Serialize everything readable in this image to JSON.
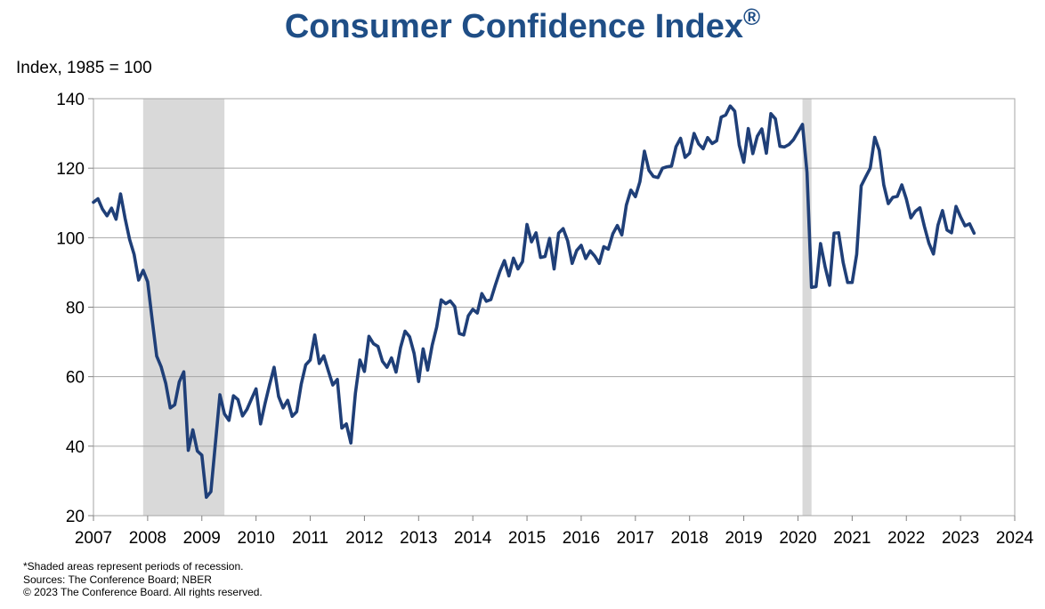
{
  "title": "Consumer Confidence Index",
  "title_mark": "®",
  "footnotes": [
    "*Shaded areas represent periods of recession.",
    "Sources: The Conference Board; NBER",
    "© 2023 The Conference Board. All rights reserved."
  ],
  "chart_data": {
    "type": "line",
    "title": "Consumer Confidence Index®",
    "ylabel": "Index, 1985 = 100",
    "xlabel": "",
    "xlim": [
      2007,
      2024
    ],
    "ylim": [
      20,
      140
    ],
    "x_ticks": [
      "2007",
      "2008",
      "2009",
      "2010",
      "2011",
      "2012",
      "2013",
      "2014",
      "2015",
      "2016",
      "2017",
      "2018",
      "2019",
      "2020",
      "2021",
      "2022",
      "2023",
      "2024"
    ],
    "y_ticks": [
      "20",
      "40",
      "60",
      "80",
      "100",
      "120",
      "140"
    ],
    "grid": "horizontal",
    "line_color": "#1f3f78",
    "recession_color": "#d9d9d9",
    "recessions": [
      {
        "start": "2007-12",
        "end": "2009-06"
      },
      {
        "start": "2020-02",
        "end": "2020-04"
      }
    ],
    "series": [
      {
        "points": [
          [
            "2007-01",
            110.2
          ],
          [
            "2007-02",
            111.2
          ],
          [
            "2007-03",
            108.2
          ],
          [
            "2007-04",
            106.3
          ],
          [
            "2007-05",
            108.5
          ],
          [
            "2007-06",
            105.3
          ],
          [
            "2007-07",
            112.6
          ],
          [
            "2007-08",
            105.6
          ],
          [
            "2007-09",
            99.5
          ],
          [
            "2007-10",
            95.2
          ],
          [
            "2007-11",
            87.8
          ],
          [
            "2007-12",
            90.6
          ],
          [
            "2008-01",
            87.3
          ],
          [
            "2008-02",
            76.4
          ],
          [
            "2008-03",
            65.9
          ],
          [
            "2008-04",
            62.8
          ],
          [
            "2008-05",
            58.1
          ],
          [
            "2008-06",
            51.0
          ],
          [
            "2008-07",
            51.9
          ],
          [
            "2008-08",
            58.5
          ],
          [
            "2008-09",
            61.4
          ],
          [
            "2008-10",
            38.8
          ],
          [
            "2008-11",
            44.7
          ],
          [
            "2008-12",
            38.6
          ],
          [
            "2009-01",
            37.4
          ],
          [
            "2009-02",
            25.3
          ],
          [
            "2009-03",
            26.9
          ],
          [
            "2009-04",
            40.8
          ],
          [
            "2009-05",
            54.8
          ],
          [
            "2009-06",
            49.3
          ],
          [
            "2009-07",
            47.4
          ],
          [
            "2009-08",
            54.5
          ],
          [
            "2009-09",
            53.4
          ],
          [
            "2009-10",
            48.7
          ],
          [
            "2009-11",
            50.6
          ],
          [
            "2009-12",
            53.6
          ],
          [
            "2010-01",
            56.5
          ],
          [
            "2010-02",
            46.4
          ],
          [
            "2010-03",
            52.3
          ],
          [
            "2010-04",
            57.7
          ],
          [
            "2010-05",
            62.7
          ],
          [
            "2010-06",
            54.3
          ],
          [
            "2010-07",
            51.0
          ],
          [
            "2010-08",
            53.2
          ],
          [
            "2010-09",
            48.6
          ],
          [
            "2010-10",
            49.9
          ],
          [
            "2010-11",
            57.8
          ],
          [
            "2010-12",
            63.4
          ],
          [
            "2011-01",
            64.8
          ],
          [
            "2011-02",
            72.0
          ],
          [
            "2011-03",
            63.8
          ],
          [
            "2011-04",
            66.0
          ],
          [
            "2011-05",
            61.7
          ],
          [
            "2011-06",
            57.6
          ],
          [
            "2011-07",
            59.2
          ],
          [
            "2011-08",
            45.2
          ],
          [
            "2011-09",
            46.4
          ],
          [
            "2011-10",
            40.9
          ],
          [
            "2011-11",
            55.2
          ],
          [
            "2011-12",
            64.8
          ],
          [
            "2012-01",
            61.5
          ],
          [
            "2012-02",
            71.6
          ],
          [
            "2012-03",
            69.5
          ],
          [
            "2012-04",
            68.7
          ],
          [
            "2012-05",
            64.4
          ],
          [
            "2012-06",
            62.7
          ],
          [
            "2012-07",
            65.4
          ],
          [
            "2012-08",
            61.3
          ],
          [
            "2012-09",
            68.4
          ],
          [
            "2012-10",
            73.1
          ],
          [
            "2012-11",
            71.5
          ],
          [
            "2012-12",
            66.7
          ],
          [
            "2013-01",
            58.6
          ],
          [
            "2013-02",
            68.0
          ],
          [
            "2013-03",
            61.9
          ],
          [
            "2013-04",
            69.0
          ],
          [
            "2013-05",
            74.3
          ],
          [
            "2013-06",
            82.1
          ],
          [
            "2013-07",
            81.0
          ],
          [
            "2013-08",
            81.8
          ],
          [
            "2013-09",
            80.2
          ],
          [
            "2013-10",
            72.4
          ],
          [
            "2013-11",
            72.0
          ],
          [
            "2013-12",
            77.5
          ],
          [
            "2014-01",
            79.4
          ],
          [
            "2014-02",
            78.3
          ],
          [
            "2014-03",
            83.9
          ],
          [
            "2014-04",
            81.7
          ],
          [
            "2014-05",
            82.2
          ],
          [
            "2014-06",
            86.4
          ],
          [
            "2014-07",
            90.3
          ],
          [
            "2014-08",
            93.4
          ],
          [
            "2014-09",
            89.0
          ],
          [
            "2014-10",
            94.1
          ],
          [
            "2014-11",
            91.0
          ],
          [
            "2014-12",
            93.1
          ],
          [
            "2015-01",
            103.8
          ],
          [
            "2015-02",
            98.8
          ],
          [
            "2015-03",
            101.4
          ],
          [
            "2015-04",
            94.3
          ],
          [
            "2015-05",
            94.6
          ],
          [
            "2015-06",
            99.8
          ],
          [
            "2015-07",
            91.0
          ],
          [
            "2015-08",
            101.3
          ],
          [
            "2015-09",
            102.6
          ],
          [
            "2015-10",
            99.1
          ],
          [
            "2015-11",
            92.6
          ],
          [
            "2015-12",
            96.3
          ],
          [
            "2016-01",
            97.8
          ],
          [
            "2016-02",
            94.0
          ],
          [
            "2016-03",
            96.2
          ],
          [
            "2016-04",
            94.7
          ],
          [
            "2016-05",
            92.6
          ],
          [
            "2016-06",
            97.4
          ],
          [
            "2016-07",
            96.7
          ],
          [
            "2016-08",
            101.1
          ],
          [
            "2016-09",
            103.5
          ],
          [
            "2016-10",
            100.8
          ],
          [
            "2016-11",
            109.4
          ],
          [
            "2016-12",
            113.7
          ],
          [
            "2017-01",
            111.8
          ],
          [
            "2017-02",
            116.1
          ],
          [
            "2017-03",
            124.9
          ],
          [
            "2017-04",
            119.4
          ],
          [
            "2017-05",
            117.6
          ],
          [
            "2017-06",
            117.3
          ],
          [
            "2017-07",
            120.0
          ],
          [
            "2017-08",
            120.4
          ],
          [
            "2017-09",
            120.6
          ],
          [
            "2017-10",
            126.2
          ],
          [
            "2017-11",
            128.6
          ],
          [
            "2017-12",
            123.1
          ],
          [
            "2018-01",
            124.3
          ],
          [
            "2018-02",
            130.0
          ],
          [
            "2018-03",
            127.0
          ],
          [
            "2018-04",
            125.6
          ],
          [
            "2018-05",
            128.8
          ],
          [
            "2018-06",
            127.1
          ],
          [
            "2018-07",
            127.9
          ],
          [
            "2018-08",
            134.7
          ],
          [
            "2018-09",
            135.3
          ],
          [
            "2018-10",
            137.9
          ],
          [
            "2018-11",
            136.4
          ],
          [
            "2018-12",
            126.6
          ],
          [
            "2019-01",
            121.7
          ],
          [
            "2019-02",
            131.4
          ],
          [
            "2019-03",
            124.2
          ],
          [
            "2019-04",
            129.2
          ],
          [
            "2019-05",
            131.3
          ],
          [
            "2019-06",
            124.3
          ],
          [
            "2019-07",
            135.7
          ],
          [
            "2019-08",
            134.2
          ],
          [
            "2019-09",
            126.3
          ],
          [
            "2019-10",
            126.1
          ],
          [
            "2019-11",
            126.8
          ],
          [
            "2019-12",
            128.2
          ],
          [
            "2020-01",
            130.4
          ],
          [
            "2020-02",
            132.6
          ],
          [
            "2020-03",
            118.8
          ],
          [
            "2020-04",
            85.7
          ],
          [
            "2020-05",
            85.9
          ],
          [
            "2020-06",
            98.3
          ],
          [
            "2020-07",
            91.7
          ],
          [
            "2020-08",
            86.3
          ],
          [
            "2020-09",
            101.3
          ],
          [
            "2020-10",
            101.4
          ],
          [
            "2020-11",
            92.9
          ],
          [
            "2020-12",
            87.1
          ],
          [
            "2021-01",
            87.1
          ],
          [
            "2021-02",
            95.2
          ],
          [
            "2021-03",
            114.9
          ],
          [
            "2021-04",
            117.5
          ],
          [
            "2021-05",
            120.0
          ],
          [
            "2021-06",
            128.9
          ],
          [
            "2021-07",
            125.1
          ],
          [
            "2021-08",
            115.2
          ],
          [
            "2021-09",
            109.8
          ],
          [
            "2021-10",
            111.6
          ],
          [
            "2021-11",
            111.9
          ],
          [
            "2021-12",
            115.2
          ],
          [
            "2022-01",
            111.1
          ],
          [
            "2022-02",
            105.7
          ],
          [
            "2022-03",
            107.6
          ],
          [
            "2022-04",
            108.6
          ],
          [
            "2022-05",
            103.2
          ],
          [
            "2022-06",
            98.4
          ],
          [
            "2022-07",
            95.3
          ],
          [
            "2022-08",
            103.6
          ],
          [
            "2022-09",
            107.8
          ],
          [
            "2022-10",
            102.2
          ],
          [
            "2022-11",
            101.4
          ],
          [
            "2022-12",
            109.0
          ],
          [
            "2023-01",
            106.0
          ],
          [
            "2023-02",
            103.4
          ],
          [
            "2023-03",
            104.0
          ],
          [
            "2023-04",
            101.3
          ]
        ]
      }
    ]
  }
}
